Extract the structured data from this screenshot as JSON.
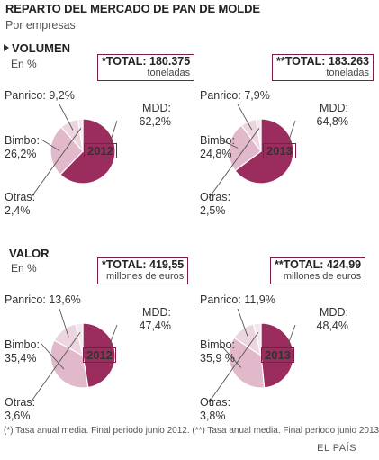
{
  "title": "REPARTO DEL MERCADO DE PAN DE MOLDE",
  "subtitle": "Por empresas",
  "colors": {
    "mdd": "#9b2c5e",
    "bimbo": "#e2b9cb",
    "panrico": "#ecd5df",
    "otras": "#f4e8ee",
    "accent": "#7a1e47"
  },
  "sections": [
    {
      "name": "VOLUMEN",
      "unit": "En %",
      "charts": [
        {
          "total_label": "*TOTAL: 180.375",
          "total_unit": "toneladas"
        },
        {
          "total_label": "**TOTAL: 183.263",
          "total_unit": "toneladas"
        }
      ]
    },
    {
      "name": "VALOR",
      "unit": "En %",
      "charts": [
        {
          "total_label": "*TOTAL: 419,55",
          "total_unit": "millones de euros"
        },
        {
          "total_label": "**TOTAL: 424,99",
          "total_unit": "millones de euros"
        }
      ]
    }
  ],
  "chart_data": [
    {
      "type": "pie",
      "title": "VOLUMEN",
      "year": "2012",
      "total": "180.375",
      "unit": "toneladas",
      "labels": [
        "MDD",
        "Bimbo",
        "Panrico",
        "Otras"
      ],
      "values": [
        62.2,
        26.2,
        9.2,
        2.4
      ],
      "value_labels": [
        "62,2%",
        "26,2%",
        "9,2%",
        "2,4%"
      ]
    },
    {
      "type": "pie",
      "title": "VOLUMEN",
      "year": "2013",
      "total": "183.263",
      "unit": "toneladas",
      "labels": [
        "MDD",
        "Bimbo",
        "Panrico",
        "Otras"
      ],
      "values": [
        64.8,
        24.8,
        7.9,
        2.5
      ],
      "value_labels": [
        "64,8%",
        "24,8%",
        "7,9%",
        "2,5%"
      ]
    },
    {
      "type": "pie",
      "title": "VALOR",
      "year": "2012",
      "total": "419,55",
      "unit": "millones de euros",
      "labels": [
        "MDD",
        "Bimbo",
        "Panrico",
        "Otras"
      ],
      "values": [
        47.4,
        35.4,
        13.6,
        3.6
      ],
      "value_labels": [
        "47,4%",
        "35,4%",
        "13,6%",
        "3,6%"
      ]
    },
    {
      "type": "pie",
      "title": "VALOR",
      "year": "2013",
      "total": "424,99",
      "unit": "millones de euros",
      "labels": [
        "MDD",
        "Bimbo",
        "Panrico",
        "Otras"
      ],
      "values": [
        48.4,
        35.9,
        11.9,
        3.8
      ],
      "value_labels": [
        "48,4%",
        "35,9 %",
        "11,9%",
        "3,8%"
      ]
    }
  ],
  "footnote": "(*) Tasa anual media. Final periodo junio 2012. (**) Tasa anual media. Final periodo junio 2013",
  "source": "EL PAÍS"
}
